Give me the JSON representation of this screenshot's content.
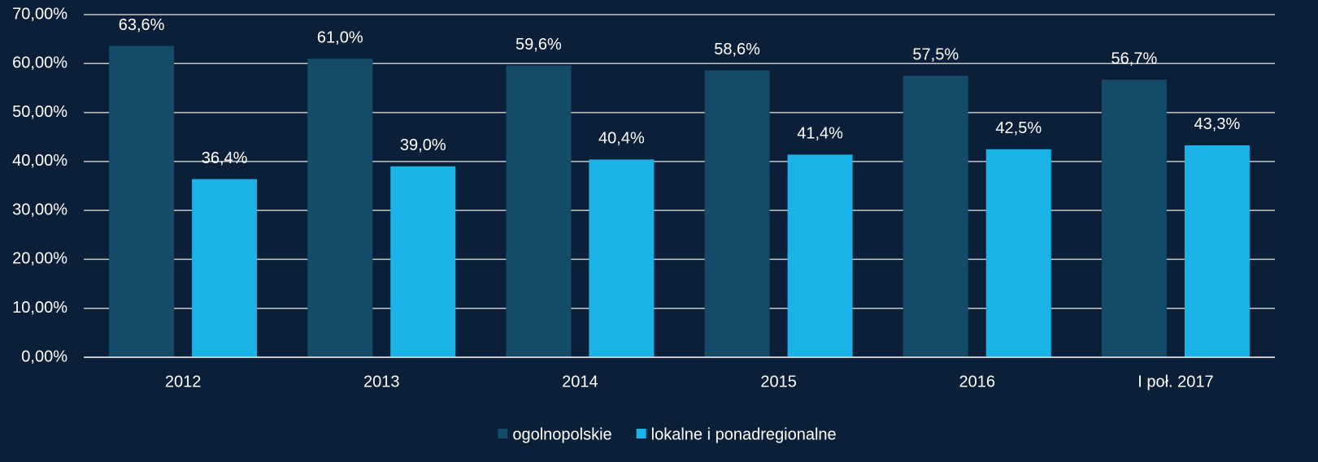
{
  "chart_data": {
    "type": "bar",
    "categories": [
      "2012",
      "2013",
      "2014",
      "2015",
      "2016",
      "I poł. 2017"
    ],
    "series": [
      {
        "name": "ogolnopolskie",
        "color": "#134b69",
        "values": [
          63.6,
          61.0,
          59.6,
          58.6,
          57.5,
          56.7
        ],
        "value_labels": [
          "63,6%",
          "61,0%",
          "59,6%",
          "58,6%",
          "57,5%",
          "56,7%"
        ]
      },
      {
        "name": "lokalne i ponadregionalne",
        "color": "#1ab3e8",
        "values": [
          36.4,
          39.0,
          40.4,
          41.4,
          42.5,
          43.3
        ],
        "value_labels": [
          "36,4%",
          "39,0%",
          "40,4%",
          "41,4%",
          "42,5%",
          "43,3%"
        ]
      }
    ],
    "ylim": [
      0,
      70
    ],
    "yticks": [
      {
        "value": 0,
        "label": "0,00%"
      },
      {
        "value": 10,
        "label": "10,00%"
      },
      {
        "value": 20,
        "label": "20,00%"
      },
      {
        "value": 30,
        "label": "30,00%"
      },
      {
        "value": 40,
        "label": "40,00%"
      },
      {
        "value": 50,
        "label": "50,00%"
      },
      {
        "value": 60,
        "label": "60,00%"
      },
      {
        "value": 70,
        "label": "70,00%"
      }
    ],
    "grid": true,
    "legend": "bottom"
  }
}
